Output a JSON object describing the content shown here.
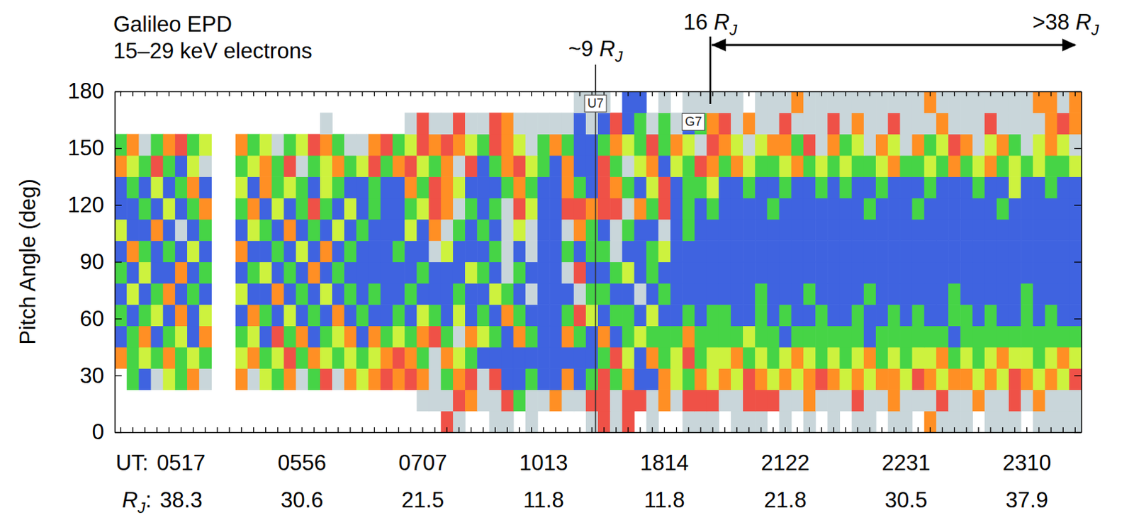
{
  "chart_data": {
    "type": "heatmap",
    "title": "Galileo EPD",
    "subtitle": "15–29 keV electrons",
    "ylabel": "Pitch Angle (deg)",
    "x_label": "UT:",
    "x2_label": "RJ:",
    "ylim": [
      0,
      180
    ],
    "yticks": [
      0,
      30,
      60,
      90,
      120,
      150,
      180
    ],
    "zlim": [
      1,
      6
    ],
    "categories": [
      null,
      null,
      null,
      null,
      null,
      "0517",
      null,
      null,
      null,
      null,
      null,
      null,
      null,
      null,
      null,
      "0556",
      null,
      null,
      null,
      null,
      null,
      null,
      null,
      null,
      null,
      "0707",
      null,
      null,
      null,
      null,
      null,
      null,
      null,
      null,
      null,
      "1013",
      null,
      null,
      null,
      null,
      null,
      null,
      null,
      null,
      null,
      "1814",
      null,
      null,
      null,
      null,
      null,
      null,
      null,
      null,
      null,
      "2122",
      null,
      null,
      null,
      null,
      null,
      null,
      null,
      null,
      null,
      "2231",
      null,
      null,
      null,
      null,
      null,
      null,
      null,
      null,
      null,
      "2310",
      null,
      null,
      null,
      null
    ],
    "rj": [
      null,
      null,
      null,
      null,
      null,
      38.3,
      null,
      null,
      null,
      null,
      null,
      null,
      null,
      null,
      null,
      30.6,
      null,
      null,
      null,
      null,
      null,
      null,
      null,
      null,
      null,
      21.5,
      null,
      null,
      null,
      null,
      null,
      null,
      null,
      null,
      null,
      11.8,
      null,
      null,
      null,
      null,
      null,
      null,
      null,
      null,
      null,
      11.8,
      null,
      null,
      null,
      null,
      null,
      null,
      null,
      null,
      null,
      21.8,
      null,
      null,
      null,
      null,
      null,
      null,
      null,
      null,
      null,
      30.5,
      null,
      null,
      null,
      null,
      null,
      null,
      null,
      null,
      null,
      37.9,
      null,
      null,
      null,
      null
    ],
    "pitch_bins": [
      0,
      11.25,
      22.5,
      33.75,
      45,
      56.25,
      67.5,
      78.75,
      90,
      101.25,
      112.5,
      123.75,
      135,
      146.25,
      157.5,
      168.75,
      180
    ],
    "cells": [
      [
        null,
        null,
        null,
        null,
        null,
        null,
        null,
        null,
        null,
        null,
        null,
        null,
        null,
        null,
        null,
        null,
        null,
        null,
        null,
        null,
        null,
        null,
        null,
        null,
        null,
        null,
        null,
        5,
        6,
        null,
        null,
        6,
        6,
        null,
        6,
        null,
        null,
        null,
        null,
        6,
        5,
        6,
        5,
        null,
        6,
        null,
        null,
        6,
        6,
        6,
        null,
        6,
        6,
        6,
        null,
        6,
        null,
        6,
        null,
        6,
        null,
        6,
        6,
        null,
        6,
        6,
        null,
        4,
        6,
        6,
        6,
        null,
        6,
        6,
        6,
        null,
        6,
        6,
        6,
        6
      ],
      [
        null,
        null,
        null,
        null,
        null,
        null,
        null,
        null,
        null,
        null,
        null,
        null,
        null,
        null,
        null,
        null,
        null,
        null,
        null,
        null,
        null,
        null,
        null,
        null,
        null,
        6,
        6,
        6,
        5,
        4,
        6,
        6,
        5,
        2,
        6,
        6,
        4,
        6,
        6,
        5,
        5,
        6,
        5,
        5,
        6,
        4,
        6,
        5,
        5,
        5,
        6,
        6,
        5,
        5,
        5,
        6,
        6,
        4,
        6,
        6,
        6,
        5,
        6,
        6,
        4,
        6,
        6,
        6,
        5,
        6,
        6,
        4,
        6,
        6,
        5,
        6,
        4,
        6,
        6,
        6
      ],
      [
        null,
        2,
        1,
        6,
        3,
        2,
        4,
        6,
        null,
        null,
        4,
        6,
        3,
        2,
        4,
        6,
        2,
        5,
        6,
        4,
        3,
        4,
        5,
        4,
        5,
        4,
        6,
        2,
        4,
        5,
        6,
        5,
        1,
        1,
        2,
        1,
        1,
        4,
        1,
        2,
        5,
        2,
        4,
        1,
        1,
        4,
        3,
        2,
        4,
        3,
        4,
        3,
        5,
        4,
        3,
        4,
        3,
        4,
        5,
        4,
        3,
        4,
        3,
        4,
        4,
        3,
        5,
        4,
        3,
        4,
        4,
        3,
        4,
        3,
        5,
        4,
        3,
        4,
        3,
        5
      ],
      [
        4,
        2,
        3,
        2,
        4,
        2,
        3,
        2,
        null,
        null,
        3,
        4,
        2,
        3,
        5,
        2,
        4,
        3,
        2,
        3,
        2,
        3,
        4,
        5,
        4,
        2,
        6,
        4,
        3,
        2,
        1,
        1,
        1,
        1,
        1,
        1,
        1,
        1,
        1,
        1,
        2,
        5,
        3,
        1,
        4,
        2,
        3,
        5,
        2,
        3,
        3,
        4,
        2,
        3,
        2,
        3,
        4,
        3,
        2,
        3,
        2,
        3,
        4,
        2,
        3,
        2,
        3,
        3,
        4,
        2,
        3,
        2,
        3,
        4,
        3,
        3,
        2,
        3,
        4,
        3
      ],
      [
        1,
        2,
        4,
        1,
        2,
        3,
        1,
        4,
        null,
        null,
        2,
        3,
        1,
        5,
        2,
        4,
        1,
        2,
        3,
        4,
        1,
        4,
        2,
        3,
        2,
        4,
        5,
        2,
        6,
        4,
        3,
        2,
        1,
        4,
        2,
        1,
        1,
        4,
        2,
        1,
        4,
        1,
        2,
        3,
        2,
        2,
        2,
        4,
        2,
        2,
        2,
        2,
        3,
        2,
        2,
        1,
        2,
        2,
        2,
        2,
        2,
        2,
        1,
        2,
        2,
        2,
        2,
        2,
        2,
        1,
        2,
        2,
        2,
        2,
        2,
        2,
        2,
        2,
        2,
        2
      ],
      [
        2,
        1,
        2,
        3,
        1,
        4,
        1,
        3,
        null,
        null,
        1,
        4,
        2,
        1,
        3,
        1,
        2,
        1,
        4,
        1,
        2,
        1,
        1,
        2,
        1,
        3,
        2,
        1,
        3,
        1,
        2,
        1,
        4,
        2,
        1,
        1,
        1,
        2,
        5,
        3,
        1,
        2,
        2,
        1,
        3,
        1,
        1,
        2,
        1,
        2,
        2,
        1,
        1,
        2,
        1,
        2,
        1,
        1,
        2,
        1,
        1,
        2,
        1,
        1,
        2,
        1,
        2,
        1,
        1,
        2,
        2,
        1,
        2,
        1,
        1,
        2,
        1,
        2,
        1,
        1
      ],
      [
        1,
        3,
        1,
        2,
        4,
        1,
        2,
        1,
        null,
        null,
        3,
        1,
        1,
        4,
        1,
        2,
        1,
        3,
        1,
        2,
        1,
        2,
        1,
        1,
        2,
        1,
        1,
        1,
        2,
        1,
        1,
        3,
        2,
        1,
        6,
        1,
        1,
        1,
        6,
        2,
        2,
        1,
        1,
        6,
        1,
        2,
        1,
        1,
        1,
        1,
        1,
        1,
        1,
        2,
        1,
        1,
        1,
        2,
        1,
        1,
        1,
        1,
        2,
        1,
        1,
        1,
        1,
        1,
        1,
        2,
        1,
        1,
        1,
        1,
        1,
        2,
        1,
        1,
        1,
        1
      ],
      [
        2,
        1,
        3,
        1,
        1,
        4,
        1,
        2,
        null,
        null,
        1,
        2,
        3,
        1,
        2,
        1,
        4,
        1,
        2,
        1,
        1,
        1,
        1,
        1,
        1,
        2,
        1,
        1,
        1,
        3,
        2,
        1,
        6,
        2,
        1,
        1,
        1,
        6,
        5,
        1,
        1,
        2,
        3,
        1,
        2,
        1,
        1,
        1,
        1,
        1,
        1,
        1,
        1,
        1,
        1,
        1,
        1,
        1,
        1,
        1,
        1,
        1,
        1,
        1,
        1,
        1,
        1,
        1,
        1,
        1,
        1,
        1,
        1,
        1,
        1,
        1,
        1,
        1,
        1,
        1
      ],
      [
        1,
        4,
        2,
        1,
        2,
        1,
        3,
        1,
        null,
        null,
        4,
        1,
        1,
        2,
        1,
        3,
        1,
        4,
        1,
        2,
        1,
        1,
        1,
        2,
        1,
        1,
        6,
        3,
        1,
        1,
        1,
        2,
        6,
        1,
        6,
        1,
        1,
        2,
        1,
        2,
        2,
        6,
        1,
        1,
        2,
        3,
        1,
        1,
        1,
        1,
        1,
        1,
        1,
        1,
        1,
        1,
        1,
        1,
        1,
        1,
        1,
        1,
        1,
        1,
        1,
        1,
        1,
        1,
        1,
        1,
        1,
        1,
        1,
        1,
        1,
        1,
        1,
        1,
        1,
        1
      ],
      [
        3,
        1,
        1,
        4,
        1,
        6,
        1,
        2,
        null,
        null,
        1,
        3,
        2,
        1,
        4,
        1,
        2,
        1,
        3,
        1,
        2,
        1,
        1,
        1,
        3,
        1,
        4,
        6,
        2,
        1,
        2,
        1,
        6,
        3,
        6,
        1,
        1,
        6,
        4,
        2,
        1,
        6,
        2,
        1,
        1,
        6,
        1,
        2,
        1,
        1,
        1,
        1,
        1,
        1,
        1,
        1,
        1,
        1,
        1,
        1,
        1,
        1,
        1,
        1,
        1,
        1,
        1,
        1,
        1,
        1,
        1,
        1,
        1,
        1,
        1,
        1,
        1,
        1,
        1,
        1
      ],
      [
        1,
        1,
        2,
        1,
        3,
        1,
        2,
        4,
        null,
        null,
        2,
        4,
        1,
        3,
        1,
        2,
        5,
        2,
        1,
        3,
        1,
        2,
        1,
        1,
        2,
        3,
        5,
        4,
        6,
        2,
        1,
        2,
        6,
        5,
        3,
        1,
        1,
        5,
        5,
        4,
        5,
        5,
        6,
        4,
        2,
        5,
        1,
        2,
        1,
        2,
        1,
        1,
        1,
        1,
        2,
        1,
        1,
        1,
        1,
        1,
        1,
        1,
        2,
        1,
        1,
        1,
        2,
        1,
        1,
        1,
        1,
        1,
        1,
        2,
        1,
        1,
        1,
        1,
        1,
        1
      ],
      [
        1,
        2,
        1,
        3,
        1,
        2,
        4,
        1,
        null,
        null,
        3,
        1,
        4,
        2,
        3,
        2,
        1,
        3,
        2,
        1,
        1,
        2,
        1,
        1,
        4,
        2,
        5,
        4,
        3,
        1,
        1,
        1,
        2,
        4,
        2,
        1,
        1,
        4,
        2,
        1,
        5,
        4,
        2,
        1,
        3,
        5,
        1,
        2,
        2,
        3,
        1,
        1,
        2,
        1,
        1,
        2,
        1,
        1,
        2,
        1,
        2,
        1,
        1,
        2,
        1,
        1,
        1,
        2,
        1,
        1,
        1,
        2,
        1,
        1,
        3,
        1,
        1,
        2,
        1,
        1
      ],
      [
        4,
        3,
        2,
        5,
        2,
        1,
        3,
        6,
        null,
        null,
        2,
        3,
        4,
        2,
        5,
        6,
        2,
        3,
        4,
        2,
        3,
        5,
        2,
        4,
        5,
        3,
        2,
        4,
        6,
        5,
        1,
        2,
        4,
        5,
        3,
        2,
        1,
        4,
        1,
        1,
        5,
        2,
        6,
        3,
        4,
        1,
        3,
        2,
        5,
        4,
        2,
        4,
        3,
        2,
        2,
        3,
        4,
        2,
        3,
        2,
        3,
        2,
        2,
        3,
        4,
        2,
        2,
        3,
        2,
        4,
        2,
        3,
        4,
        2,
        3,
        2,
        3,
        2,
        2,
        3
      ],
      [
        2,
        4,
        6,
        2,
        4,
        5,
        2,
        3,
        null,
        null,
        4,
        2,
        3,
        6,
        2,
        3,
        5,
        4,
        2,
        6,
        6,
        4,
        5,
        2,
        3,
        5,
        4,
        5,
        4,
        3,
        2,
        5,
        4,
        3,
        6,
        2,
        4,
        2,
        1,
        1,
        2,
        4,
        3,
        2,
        5,
        2,
        4,
        3,
        6,
        5,
        4,
        3,
        6,
        3,
        4,
        4,
        2,
        5,
        6,
        4,
        2,
        3,
        6,
        4,
        3,
        6,
        4,
        2,
        3,
        5,
        4,
        6,
        3,
        4,
        2,
        6,
        3,
        4,
        3,
        6
      ],
      [
        null,
        null,
        null,
        null,
        null,
        null,
        null,
        null,
        null,
        null,
        null,
        null,
        null,
        null,
        null,
        null,
        null,
        6,
        null,
        null,
        null,
        null,
        null,
        null,
        6,
        5,
        6,
        6,
        5,
        6,
        6,
        5,
        4,
        6,
        6,
        6,
        6,
        6,
        1,
        6,
        1,
        5,
        1,
        2,
        6,
        2,
        6,
        1,
        2,
        4,
        5,
        6,
        4,
        6,
        6,
        5,
        6,
        6,
        6,
        5,
        6,
        4,
        6,
        6,
        5,
        6,
        6,
        6,
        4,
        6,
        6,
        6,
        5,
        6,
        6,
        6,
        6,
        4,
        5,
        4
      ],
      [
        null,
        null,
        null,
        null,
        null,
        null,
        null,
        null,
        null,
        null,
        null,
        null,
        null,
        null,
        null,
        null,
        null,
        null,
        null,
        null,
        null,
        null,
        null,
        null,
        null,
        null,
        null,
        null,
        null,
        null,
        null,
        null,
        null,
        null,
        null,
        null,
        null,
        null,
        6,
        6,
        6,
        null,
        1,
        1,
        null,
        6,
        null,
        6,
        6,
        6,
        6,
        6,
        null,
        6,
        6,
        6,
        4,
        6,
        6,
        6,
        6,
        6,
        6,
        6,
        6,
        6,
        6,
        4,
        6,
        6,
        6,
        6,
        6,
        6,
        6,
        6,
        4,
        4,
        6,
        4
      ]
    ],
    "vlines": [
      39.8
    ],
    "top_labels": [
      {
        "text": "~9 RJ",
        "x": 39.8
      },
      {
        "text": "16 RJ",
        "x": 49.3
      },
      {
        "text": ">38 RJ",
        "x": 79.6
      }
    ],
    "arrow": [
      49.3,
      79.6
    ],
    "boxes": [
      {
        "text": "U7",
        "x": 39.8,
        "y": 173.7
      },
      {
        "text": "G7",
        "x": 47.9,
        "y": 164
      }
    ]
  }
}
